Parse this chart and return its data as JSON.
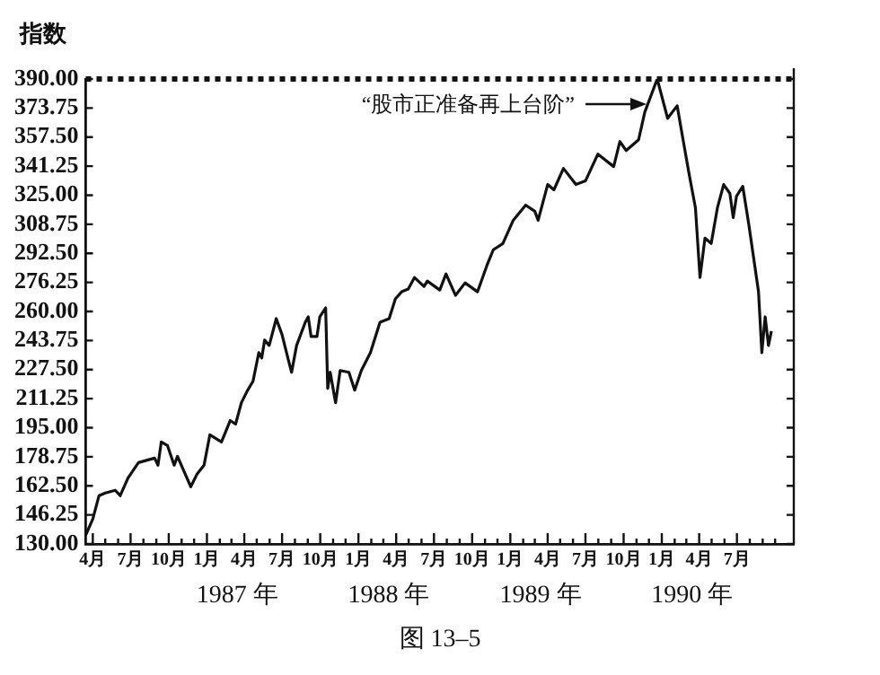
{
  "chart_data": {
    "type": "line",
    "ylabel": "指数",
    "x": [
      "1986-03-15",
      "1986-04-01",
      "1986-04-16",
      "1986-05-01",
      "1986-05-25",
      "1986-06-06",
      "1986-06-25",
      "1986-07-20",
      "1986-08-12",
      "1986-08-28",
      "1986-09-05",
      "1986-09-13",
      "1986-09-28",
      "1986-10-14",
      "1986-10-22",
      "1986-11-07",
      "1986-11-23",
      "1986-12-08",
      "1986-12-25",
      "1987-01-08",
      "1987-01-22",
      "1987-02-05",
      "1987-02-26",
      "1987-03-11",
      "1987-03-25",
      "1987-04-08",
      "1987-04-22",
      "1987-05-06",
      "1987-05-13",
      "1987-05-20",
      "1987-05-31",
      "1987-06-17",
      "1987-07-01",
      "1987-07-15",
      "1987-07-24",
      "1987-08-05",
      "1987-08-26",
      "1987-09-02",
      "1987-09-09",
      "1987-09-23",
      "1987-09-30",
      "1987-10-14",
      "1987-10-19",
      "1987-10-25",
      "1987-11-07",
      "1987-11-18",
      "1987-12-09",
      "1987-12-23",
      "1988-01-08",
      "1988-01-30",
      "1988-02-22",
      "1988-03-15",
      "1988-03-30",
      "1988-04-14",
      "1988-04-30",
      "1988-05-15",
      "1988-06-07",
      "1988-06-15",
      "1988-07-15",
      "1988-07-30",
      "1988-08-22",
      "1988-09-14",
      "1988-10-14",
      "1988-11-06",
      "1988-11-21",
      "1988-12-14",
      "1989-01-08",
      "1989-02-07",
      "1989-03-01",
      "1989-03-09",
      "1989-04-01",
      "1989-04-16",
      "1989-05-09",
      "1989-06-08",
      "1989-07-01",
      "1989-07-31",
      "1989-09-07",
      "1989-09-22",
      "1989-10-07",
      "1989-11-06",
      "1989-11-21",
      "1989-12-21",
      "1990-01-15",
      "1990-02-07",
      "1990-02-22",
      "1990-03-08",
      "1990-03-23",
      "1990-04-03",
      "1990-04-15",
      "1990-04-30",
      "1990-05-15",
      "1990-05-30",
      "1990-06-14",
      "1990-06-22",
      "1990-06-30",
      "1990-07-15",
      "1990-07-30",
      "1990-08-22",
      "1990-08-30",
      "1990-09-07",
      "1990-09-15",
      "1990-09-22"
    ],
    "series": [
      {
        "color": "#111111",
        "values": [
          135,
          144,
          157,
          158.5,
          160,
          157,
          167,
          175.5,
          177,
          178,
          174,
          187,
          185,
          174,
          179,
          170.5,
          162,
          169,
          174,
          191,
          189,
          187,
          199,
          197,
          209,
          215.5,
          221,
          237,
          234,
          244,
          241,
          256,
          247,
          234,
          226,
          241,
          254,
          257,
          246,
          246,
          257,
          262,
          217,
          226,
          209,
          227,
          226,
          216,
          227,
          237,
          254,
          256,
          267,
          271,
          272.5,
          279,
          274,
          277,
          272,
          281,
          269,
          276,
          271,
          286,
          294.5,
          298,
          311,
          319.5,
          316,
          311,
          331,
          328,
          340,
          331,
          333,
          348,
          341,
          355,
          350,
          356,
          371.5,
          390,
          368,
          375,
          355,
          336.5,
          318,
          279,
          301,
          298,
          318,
          331,
          326,
          312.5,
          324.5,
          330,
          308,
          271,
          237,
          257,
          241,
          249
        ]
      }
    ],
    "xlim": [
      "1986-03-15",
      "1990-11-15"
    ],
    "xticks": [
      {
        "value": "1986-04",
        "label": "4月"
      },
      {
        "value": "1986-05",
        "label": null
      },
      {
        "value": "1986-06",
        "label": null
      },
      {
        "value": "1986-07",
        "label": "7月"
      },
      {
        "value": "1986-08",
        "label": null
      },
      {
        "value": "1986-09",
        "label": null
      },
      {
        "value": "1986-10",
        "label": "10月"
      },
      {
        "value": "1986-11",
        "label": null
      },
      {
        "value": "1986-12",
        "label": null
      },
      {
        "value": "1987-01",
        "label": "1月"
      },
      {
        "value": "1987-02",
        "label": null
      },
      {
        "value": "1987-03",
        "label": null
      },
      {
        "value": "1987-04",
        "label": "4月"
      },
      {
        "value": "1987-05",
        "label": null
      },
      {
        "value": "1987-06",
        "label": null
      },
      {
        "value": "1987-07",
        "label": "7月"
      },
      {
        "value": "1987-08",
        "label": null
      },
      {
        "value": "1987-09",
        "label": null
      },
      {
        "value": "1987-10",
        "label": "10月"
      },
      {
        "value": "1987-11",
        "label": null
      },
      {
        "value": "1987-12",
        "label": null
      },
      {
        "value": "1988-01",
        "label": "1月"
      },
      {
        "value": "1988-02",
        "label": null
      },
      {
        "value": "1988-03",
        "label": null
      },
      {
        "value": "1988-04",
        "label": "4月"
      },
      {
        "value": "1988-05",
        "label": null
      },
      {
        "value": "1988-06",
        "label": null
      },
      {
        "value": "1988-07",
        "label": "7月"
      },
      {
        "value": "1988-08",
        "label": null
      },
      {
        "value": "1988-09",
        "label": null
      },
      {
        "value": "1988-10",
        "label": "10月"
      },
      {
        "value": "1988-11",
        "label": null
      },
      {
        "value": "1988-12",
        "label": null
      },
      {
        "value": "1989-01",
        "label": "1月"
      },
      {
        "value": "1989-02",
        "label": null
      },
      {
        "value": "1989-03",
        "label": null
      },
      {
        "value": "1989-04",
        "label": "4月"
      },
      {
        "value": "1989-05",
        "label": null
      },
      {
        "value": "1989-06",
        "label": null
      },
      {
        "value": "1989-07",
        "label": "7月"
      },
      {
        "value": "1989-08",
        "label": null
      },
      {
        "value": "1989-09",
        "label": null
      },
      {
        "value": "1989-10",
        "label": "10月"
      },
      {
        "value": "1989-11",
        "label": null
      },
      {
        "value": "1989-12",
        "label": null
      },
      {
        "value": "1990-01",
        "label": "1月"
      },
      {
        "value": "1990-02",
        "label": null
      },
      {
        "value": "1990-03",
        "label": null
      },
      {
        "value": "1990-04",
        "label": "4月"
      },
      {
        "value": "1990-05",
        "label": null
      },
      {
        "value": "1990-06",
        "label": null
      },
      {
        "value": "1990-07",
        "label": "7月"
      },
      {
        "value": "1990-08",
        "label": null
      },
      {
        "value": "1990-09",
        "label": null
      },
      {
        "value": "1990-10",
        "label": null
      }
    ],
    "ylim": [
      130,
      390
    ],
    "yticks": [
      {
        "value": 130,
        "label": "130.00"
      },
      {
        "value": 146.25,
        "label": "146.25"
      },
      {
        "value": 162.5,
        "label": "162.50"
      },
      {
        "value": 178.75,
        "label": "178.75"
      },
      {
        "value": 195,
        "label": "195.00"
      },
      {
        "value": 211.25,
        "label": "211.25"
      },
      {
        "value": 227.5,
        "label": "227.50"
      },
      {
        "value": 243.75,
        "label": "243.75"
      },
      {
        "value": 260,
        "label": "260.00"
      },
      {
        "value": 276.25,
        "label": "276.25"
      },
      {
        "value": 292.5,
        "label": "292.50"
      },
      {
        "value": 308.75,
        "label": "308.75"
      },
      {
        "value": 325,
        "label": "325.00"
      },
      {
        "value": 341.25,
        "label": "341.25"
      },
      {
        "value": 357.5,
        "label": "357.50"
      },
      {
        "value": 373.75,
        "label": "373.75"
      },
      {
        "value": 390,
        "label": "390.00"
      }
    ],
    "ref_lines": [
      {
        "axis": "y",
        "value": 390,
        "color": "#111111",
        "line_style": "dotted"
      }
    ],
    "marker": "none",
    "line_style": "solid",
    "annotations": [
      "“股市正准备再上台阶”",
      "1987 年",
      "1988 年",
      "1989 年",
      "1990 年",
      "图 13–5"
    ]
  }
}
